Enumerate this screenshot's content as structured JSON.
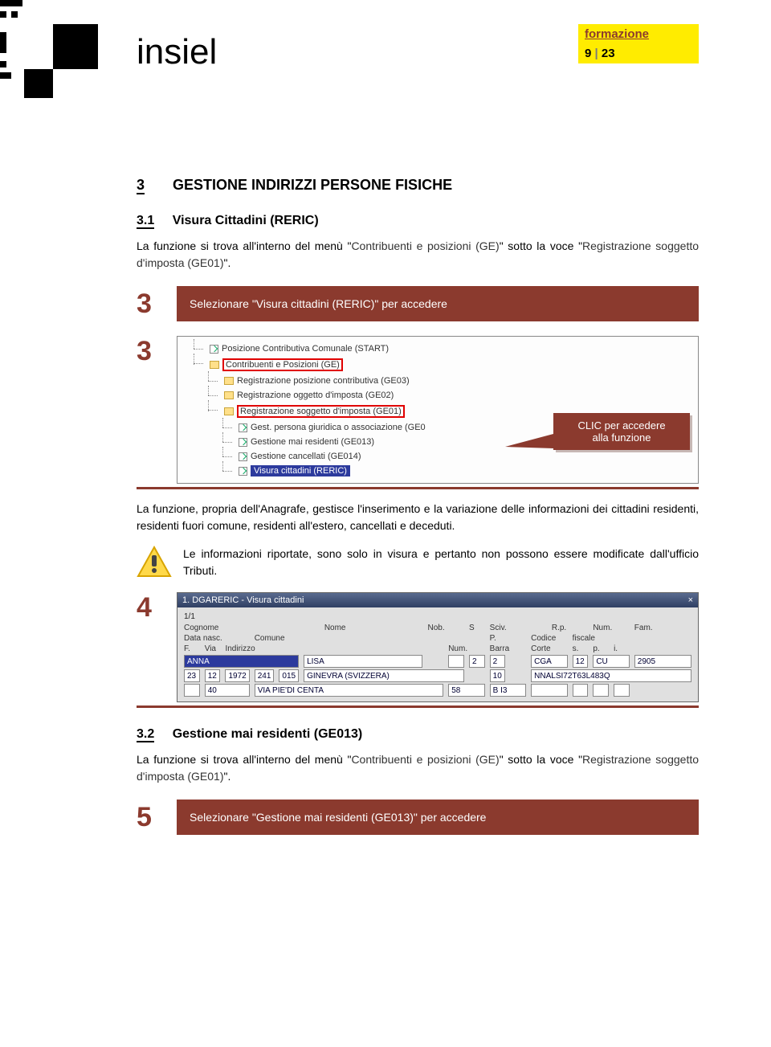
{
  "header": {
    "brand": "insiel",
    "badge_top": "formazione",
    "badge_page": "9",
    "badge_sep": "|",
    "badge_total": "23"
  },
  "section": {
    "num": "3",
    "title": "GESTIONE INDIRIZZI PERSONE FISICHE"
  },
  "sub1": {
    "num": "3.1",
    "title": "Visura Cittadini (RERIC)"
  },
  "p1a": "La funzione si trova all'interno del menù \"",
  "p1_em1": "Contribuenti e posizioni (GE)",
  "p1b": "\" sotto la voce \"",
  "p1_em2": "Registrazione soggetto d'imposta (GE01)",
  "p1c": "\".",
  "step3": {
    "num": "3",
    "text": "Selezionare \"Visura cittadini (RERIC)\" per accedere"
  },
  "tree": {
    "items": [
      {
        "label": "Posizione Contributiva Comunale (START)",
        "icon": "leaf"
      },
      {
        "label": "Contribuenti e Posizioni (GE)",
        "icon": "folder",
        "boxed": true
      },
      {
        "label": "Registrazione posizione contributiva (GE03)",
        "icon": "folder",
        "indent": 1
      },
      {
        "label": "Registrazione oggetto d'imposta (GE02)",
        "icon": "folder",
        "indent": 1
      },
      {
        "label": "Registrazione soggetto d'imposta (GE01)",
        "icon": "folder",
        "indent": 1,
        "boxed": true
      },
      {
        "label": "Gest. persona giuridica o associazione (GE0",
        "icon": "leaf",
        "indent": 2
      },
      {
        "label": "Gestione mai residenti (GE013)",
        "icon": "leaf",
        "indent": 2
      },
      {
        "label": "Gestione cancellati (GE014)",
        "icon": "leaf",
        "indent": 2
      },
      {
        "label": "Visura cittadini (RERIC)",
        "icon": "leaf",
        "indent": 2,
        "selected": true
      }
    ],
    "callout_l1": "CLIC per accedere",
    "callout_l2": "alla funzione",
    "side_num": "3"
  },
  "p2": "La funzione, propria dell'Anagrafe, gestisce l'inserimento e la variazione delle informazioni dei cittadini residenti, residenti fuori comune, residenti all'estero, cancellati e deceduti.",
  "warn": "Le informazioni riportate, sono solo in visura e pertanto non possono essere modificate dall'ufficio Tributi.",
  "form": {
    "side_num": "4",
    "title": "1. DGARERIC - Visura cittadini",
    "counter": "1/1",
    "labels": {
      "cognome": "Cognome",
      "nome": "Nome",
      "nob": "Nob.",
      "s": "S",
      "sciv": "Sciv.",
      "rp": "R.p.",
      "num": "Num.",
      "fam": "Fam.",
      "data": "Data  nasc.",
      "comune": "Comune",
      "p": "P.",
      "codice": "Codice",
      "fiscale": "fiscale",
      "f": "F.",
      "via": "Via",
      "indirizzo": "Indirizzo",
      "num2": "Num.",
      "barra": "Barra",
      "corte": "Corte",
      "sp": "s.",
      "pp": "p.",
      "ii": "i."
    },
    "values": {
      "cognome": "ANNA",
      "nome": "LISA",
      "s": "2",
      "sciv": "2",
      "rp": "CGA",
      "num": "12",
      "fam_code": "CU",
      "fam": "2905",
      "d1": "23",
      "d2": "12",
      "d3": "1972",
      "com1": "241",
      "com2": "015",
      "comune_txt": "GINEVRA (SVIZZERA)",
      "p": "10",
      "cf": "NNALSI72T63L483Q",
      "via1": "40",
      "indirizzo": "VIA PIE'DI CENTA",
      "num2": "58",
      "barra": "B I3"
    }
  },
  "sub2": {
    "num": "3.2",
    "title": "Gestione mai residenti (GE013)"
  },
  "p3a": "La funzione si trova all'interno del menù \"",
  "p3_em1": "Contribuenti e posizioni (GE)",
  "p3b": "\" sotto la voce \"",
  "p3_em2": "Registrazione soggetto d'imposta (GE01)",
  "p3c": "\".",
  "step5": {
    "num": "5",
    "text": "Selezionare \"Gestione mai residenti (GE013)\" per accedere"
  },
  "colors": {
    "accent": "#8b3a2e",
    "yellow": "#ffec00"
  }
}
